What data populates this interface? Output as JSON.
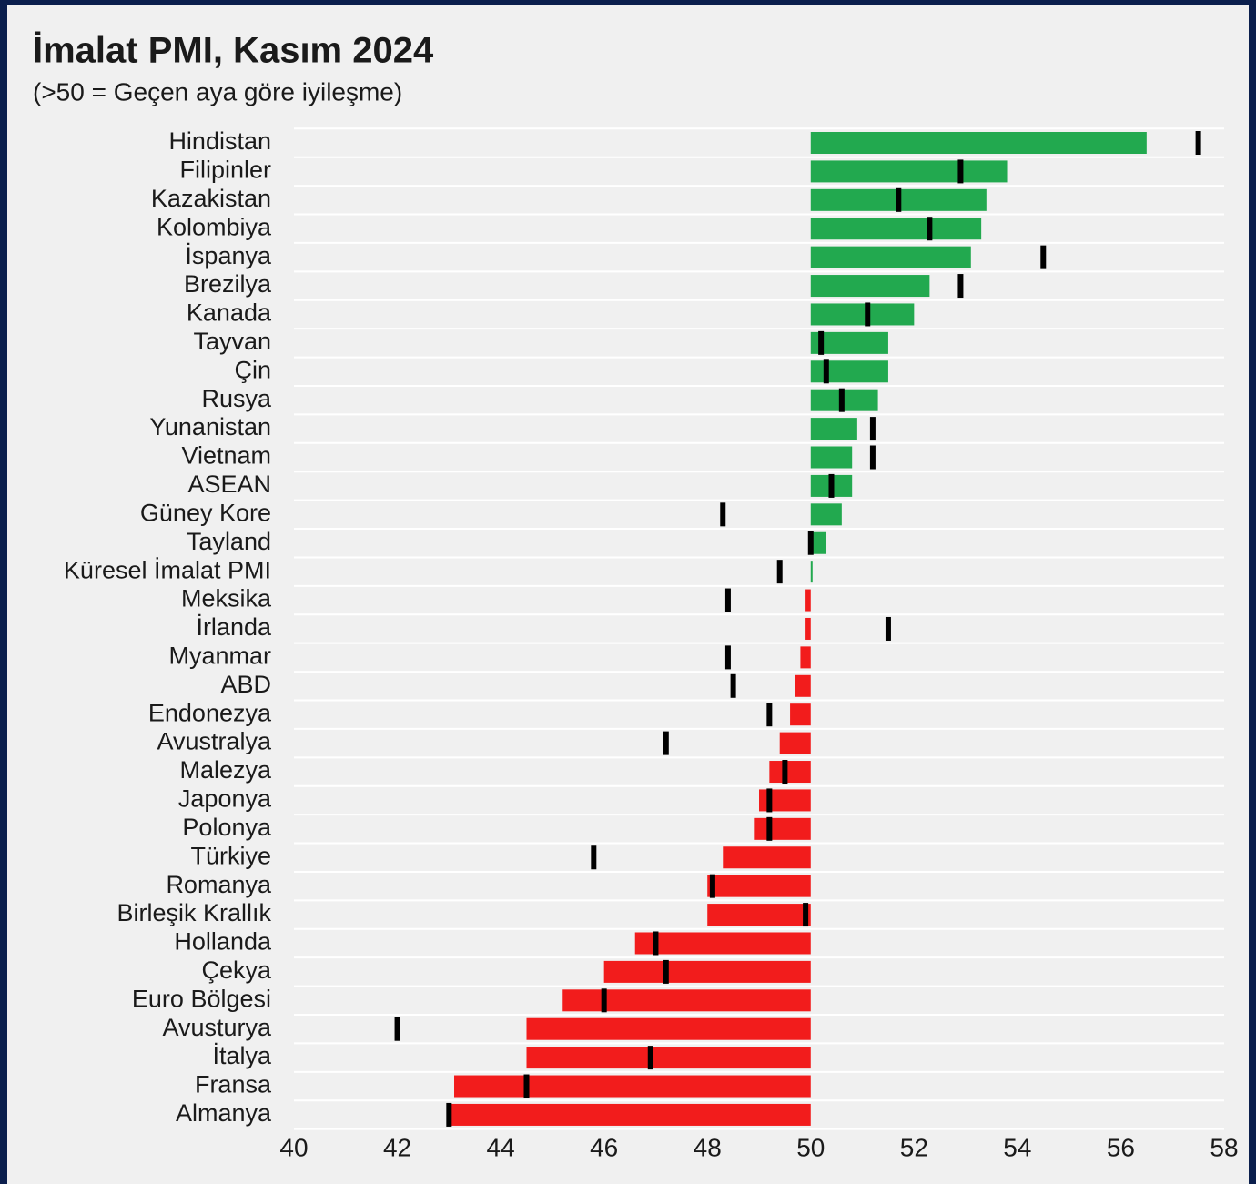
{
  "chart_data": {
    "type": "bar",
    "orientation": "horizontal",
    "title": "İmalat PMI, Kasım 2024",
    "subtitle": "(>50 = Geçen aya göre iyileşme)",
    "categories": [
      "Hindistan",
      "Filipinler",
      "Kazakistan",
      "Kolombiya",
      "İspanya",
      "Brezilya",
      "Kanada",
      "Tayvan",
      "Çin",
      "Rusya",
      "Yunanistan",
      "Vietnam",
      "ASEAN",
      "Güney Kore",
      "Tayland",
      "Küresel İmalat PMI",
      "Meksika",
      "İrlanda",
      "Myanmar",
      "ABD",
      "Endonezya",
      "Avustralya",
      "Malezya",
      "Japonya",
      "Polonya",
      "Türkiye",
      "Romanya",
      "Birleşik Krallık",
      "Hollanda",
      "Çekya",
      "Euro Bölgesi",
      "Avusturya",
      "İtalya",
      "Fransa",
      "Almanya"
    ],
    "values": [
      56.5,
      53.8,
      53.4,
      53.3,
      53.1,
      52.3,
      52.0,
      51.5,
      51.5,
      51.3,
      50.9,
      50.8,
      50.8,
      50.6,
      50.3,
      50.0,
      49.9,
      49.9,
      49.8,
      49.7,
      49.6,
      49.4,
      49.2,
      49.0,
      48.9,
      48.3,
      48.0,
      48.0,
      46.6,
      46.0,
      45.2,
      44.5,
      44.5,
      43.1,
      43.0
    ],
    "marker_values": [
      57.5,
      52.9,
      51.7,
      52.3,
      54.5,
      52.9,
      51.1,
      50.2,
      50.3,
      50.6,
      51.2,
      51.2,
      50.4,
      48.3,
      50.0,
      49.4,
      48.4,
      51.5,
      48.4,
      48.5,
      49.2,
      47.2,
      49.5,
      49.2,
      49.2,
      45.8,
      48.1,
      49.9,
      47.0,
      47.2,
      46.0,
      42.0,
      46.9,
      44.5,
      43.0
    ],
    "baseline": 50,
    "positive_color": "#22a94f",
    "negative_color": "#f21c1c",
    "marker_color": "#000000",
    "xlim": [
      40,
      58
    ],
    "xticks": [
      40,
      42,
      44,
      46,
      48,
      50,
      52,
      54,
      56,
      58
    ]
  }
}
